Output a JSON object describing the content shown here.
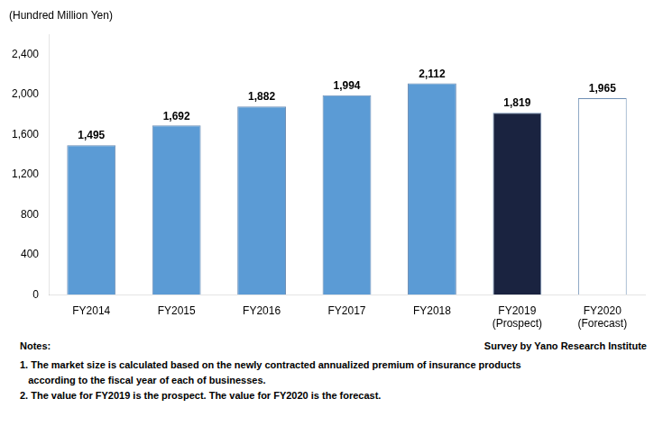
{
  "chart_data": {
    "type": "bar",
    "ylabel": "(Hundred Million Yen)",
    "categories": [
      "FY2014",
      "FY2015",
      "FY2016",
      "FY2017",
      "FY2018",
      "FY2019\n(Prospect)",
      "FY2020\n(Forecast)"
    ],
    "values": [
      1495,
      1692,
      1882,
      1994,
      2112,
      1819,
      1965
    ],
    "value_labels": [
      "1,495",
      "1,692",
      "1,882",
      "1,994",
      "2,112",
      "1,819",
      "1,965"
    ],
    "data_labels": true,
    "colors": [
      "#5b9bd5",
      "#5b9bd5",
      "#5b9bd5",
      "#5b9bd5",
      "#5b9bd5",
      "#1a2340",
      "#ffffff"
    ],
    "ylim": [
      0,
      2600
    ],
    "yticks": [
      0,
      400,
      800,
      {
        "value": 1200,
        "label": "1,200"
      },
      {
        "value": 1600,
        "label": "1,600"
      },
      {
        "value": 2000,
        "label": "2,000"
      },
      {
        "value": 2400,
        "label": "2,400"
      }
    ],
    "grid": false,
    "notes_label": "Notes:",
    "source": "Survey by Yano Research Institute",
    "notes": [
      "1. The market size is calculated based on the newly contracted annualized premium of insurance products",
      "   according to the fiscal year of each of businesses.",
      "2. The value for FY2019 is the prospect. The value for FY2020 is the forecast."
    ]
  }
}
